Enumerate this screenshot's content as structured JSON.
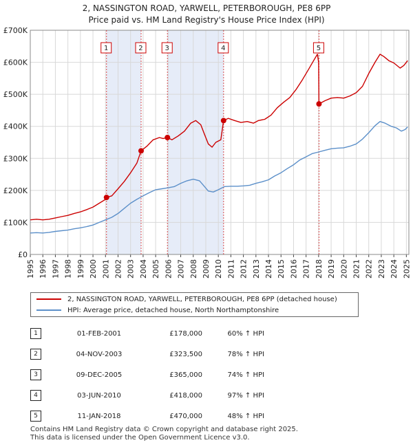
{
  "chart_data": {
    "type": "line",
    "title": "2, NASSINGTON ROAD, YARWELL, PETERBOROUGH, PE8 6PP",
    "subtitle": "Price paid vs. HM Land Registry's House Price Index (HPI)",
    "xlabel": "",
    "ylabel": "",
    "xlim": [
      1995,
      2025.2
    ],
    "ylim": [
      0,
      700000
    ],
    "x_ticks": [
      "1995",
      "1996",
      "1997",
      "1998",
      "1999",
      "2000",
      "2001",
      "2002",
      "2003",
      "2004",
      "2005",
      "2006",
      "2007",
      "2008",
      "2009",
      "2010",
      "2011",
      "2012",
      "2013",
      "2014",
      "2015",
      "2016",
      "2017",
      "2018",
      "2019",
      "2020",
      "2021",
      "2022",
      "2023",
      "2024",
      "2025"
    ],
    "y_ticks": [
      {
        "value": 0,
        "label": "£0"
      },
      {
        "value": 100000,
        "label": "£100K"
      },
      {
        "value": 200000,
        "label": "£200K"
      },
      {
        "value": 300000,
        "label": "£300K"
      },
      {
        "value": 400000,
        "label": "£400K"
      },
      {
        "value": 500000,
        "label": "£500K"
      },
      {
        "value": 600000,
        "label": "£600K"
      },
      {
        "value": 700000,
        "label": "£700K"
      }
    ],
    "grid": true,
    "shaded_periods": [
      [
        2001.08,
        2003.84
      ],
      [
        2005.94,
        2010.42
      ]
    ],
    "series": [
      {
        "name": "2, NASSINGTON ROAD, YARWELL, PETERBOROUGH, PE8 6PP (detached house)",
        "color": "#cc0000",
        "points": [
          [
            1995.0,
            108000
          ],
          [
            1995.5,
            110000
          ],
          [
            1996.0,
            108000
          ],
          [
            1996.5,
            110000
          ],
          [
            1997.0,
            114000
          ],
          [
            1997.5,
            118000
          ],
          [
            1998.0,
            122000
          ],
          [
            1998.5,
            128000
          ],
          [
            1999.0,
            133000
          ],
          [
            1999.5,
            140000
          ],
          [
            2000.0,
            148000
          ],
          [
            2000.5,
            160000
          ],
          [
            2001.0,
            172000
          ],
          [
            2001.08,
            178000
          ],
          [
            2001.5,
            183000
          ],
          [
            2002.0,
            205000
          ],
          [
            2002.5,
            228000
          ],
          [
            2003.0,
            255000
          ],
          [
            2003.5,
            285000
          ],
          [
            2003.84,
            323500
          ],
          [
            2004.3,
            338000
          ],
          [
            2004.8,
            358000
          ],
          [
            2005.3,
            365000
          ],
          [
            2005.6,
            362000
          ],
          [
            2005.94,
            365000
          ],
          [
            2006.3,
            358000
          ],
          [
            2006.8,
            370000
          ],
          [
            2007.3,
            385000
          ],
          [
            2007.8,
            410000
          ],
          [
            2008.2,
            418000
          ],
          [
            2008.6,
            405000
          ],
          [
            2008.9,
            375000
          ],
          [
            2009.2,
            345000
          ],
          [
            2009.5,
            335000
          ],
          [
            2009.8,
            350000
          ],
          [
            2010.2,
            358000
          ],
          [
            2010.42,
            418000
          ],
          [
            2010.8,
            425000
          ],
          [
            2011.3,
            418000
          ],
          [
            2011.8,
            412000
          ],
          [
            2012.3,
            415000
          ],
          [
            2012.8,
            410000
          ],
          [
            2013.2,
            418000
          ],
          [
            2013.7,
            422000
          ],
          [
            2014.2,
            435000
          ],
          [
            2014.7,
            458000
          ],
          [
            2015.2,
            475000
          ],
          [
            2015.7,
            490000
          ],
          [
            2016.2,
            515000
          ],
          [
            2016.7,
            545000
          ],
          [
            2017.2,
            578000
          ],
          [
            2017.6,
            605000
          ],
          [
            2017.9,
            625000
          ],
          [
            2018.0,
            600000
          ],
          [
            2018.03,
            470000
          ],
          [
            2018.5,
            480000
          ],
          [
            2019.0,
            488000
          ],
          [
            2019.5,
            490000
          ],
          [
            2020.0,
            488000
          ],
          [
            2020.5,
            495000
          ],
          [
            2021.0,
            505000
          ],
          [
            2021.5,
            525000
          ],
          [
            2022.0,
            565000
          ],
          [
            2022.5,
            600000
          ],
          [
            2022.9,
            625000
          ],
          [
            2023.2,
            618000
          ],
          [
            2023.6,
            605000
          ],
          [
            2024.0,
            598000
          ],
          [
            2024.5,
            582000
          ],
          [
            2024.8,
            590000
          ],
          [
            2025.1,
            605000
          ]
        ]
      },
      {
        "name": "HPI: Average price, detached house, North Northamptonshire",
        "color": "#5b8fc9",
        "points": [
          [
            1995.0,
            67000
          ],
          [
            1995.5,
            68000
          ],
          [
            1996.0,
            67000
          ],
          [
            1996.5,
            69000
          ],
          [
            1997.0,
            72000
          ],
          [
            1997.5,
            74000
          ],
          [
            1998.0,
            76000
          ],
          [
            1998.5,
            80000
          ],
          [
            1999.0,
            83000
          ],
          [
            1999.5,
            87000
          ],
          [
            2000.0,
            92000
          ],
          [
            2000.5,
            100000
          ],
          [
            2001.0,
            108000
          ],
          [
            2001.5,
            116000
          ],
          [
            2002.0,
            128000
          ],
          [
            2002.5,
            144000
          ],
          [
            2003.0,
            160000
          ],
          [
            2003.5,
            172000
          ],
          [
            2004.0,
            183000
          ],
          [
            2004.5,
            193000
          ],
          [
            2005.0,
            202000
          ],
          [
            2005.5,
            205000
          ],
          [
            2006.0,
            208000
          ],
          [
            2006.5,
            212000
          ],
          [
            2007.0,
            222000
          ],
          [
            2007.5,
            230000
          ],
          [
            2008.0,
            235000
          ],
          [
            2008.5,
            230000
          ],
          [
            2008.9,
            212000
          ],
          [
            2009.2,
            198000
          ],
          [
            2009.6,
            195000
          ],
          [
            2010.0,
            202000
          ],
          [
            2010.5,
            212000
          ],
          [
            2011.0,
            213000
          ],
          [
            2011.5,
            213000
          ],
          [
            2012.0,
            214000
          ],
          [
            2012.5,
            216000
          ],
          [
            2013.0,
            222000
          ],
          [
            2013.5,
            227000
          ],
          [
            2014.0,
            233000
          ],
          [
            2014.5,
            245000
          ],
          [
            2015.0,
            255000
          ],
          [
            2015.5,
            268000
          ],
          [
            2016.0,
            280000
          ],
          [
            2016.5,
            295000
          ],
          [
            2017.0,
            305000
          ],
          [
            2017.5,
            315000
          ],
          [
            2018.0,
            320000
          ],
          [
            2018.5,
            325000
          ],
          [
            2019.0,
            330000
          ],
          [
            2019.5,
            332000
          ],
          [
            2020.0,
            333000
          ],
          [
            2020.5,
            338000
          ],
          [
            2021.0,
            345000
          ],
          [
            2021.5,
            360000
          ],
          [
            2022.0,
            380000
          ],
          [
            2022.5,
            402000
          ],
          [
            2022.9,
            415000
          ],
          [
            2023.3,
            410000
          ],
          [
            2023.8,
            400000
          ],
          [
            2024.2,
            395000
          ],
          [
            2024.6,
            385000
          ],
          [
            2024.9,
            390000
          ],
          [
            2025.1,
            398000
          ]
        ]
      }
    ],
    "sales": [
      {
        "id": "1",
        "x": 2001.08,
        "value": 178000,
        "date": "01-FEB-2001",
        "price": "£178,000",
        "hpi": "60% ↑ HPI"
      },
      {
        "id": "2",
        "x": 2003.84,
        "value": 323500,
        "date": "04-NOV-2003",
        "price": "£323,500",
        "hpi": "78% ↑ HPI"
      },
      {
        "id": "3",
        "x": 2005.94,
        "value": 365000,
        "date": "09-DEC-2005",
        "price": "£365,000",
        "hpi": "74% ↑ HPI"
      },
      {
        "id": "4",
        "x": 2010.42,
        "value": 418000,
        "date": "03-JUN-2010",
        "price": "£418,000",
        "hpi": "97% ↑ HPI"
      },
      {
        "id": "5",
        "x": 2018.03,
        "value": 470000,
        "date": "11-JAN-2018",
        "price": "£470,000",
        "hpi": "48% ↑ HPI"
      }
    ]
  },
  "footer": {
    "line1": "Contains HM Land Registry data © Crown copyright and database right 2025.",
    "line2": "This data is licensed under the Open Government Licence v3.0."
  }
}
